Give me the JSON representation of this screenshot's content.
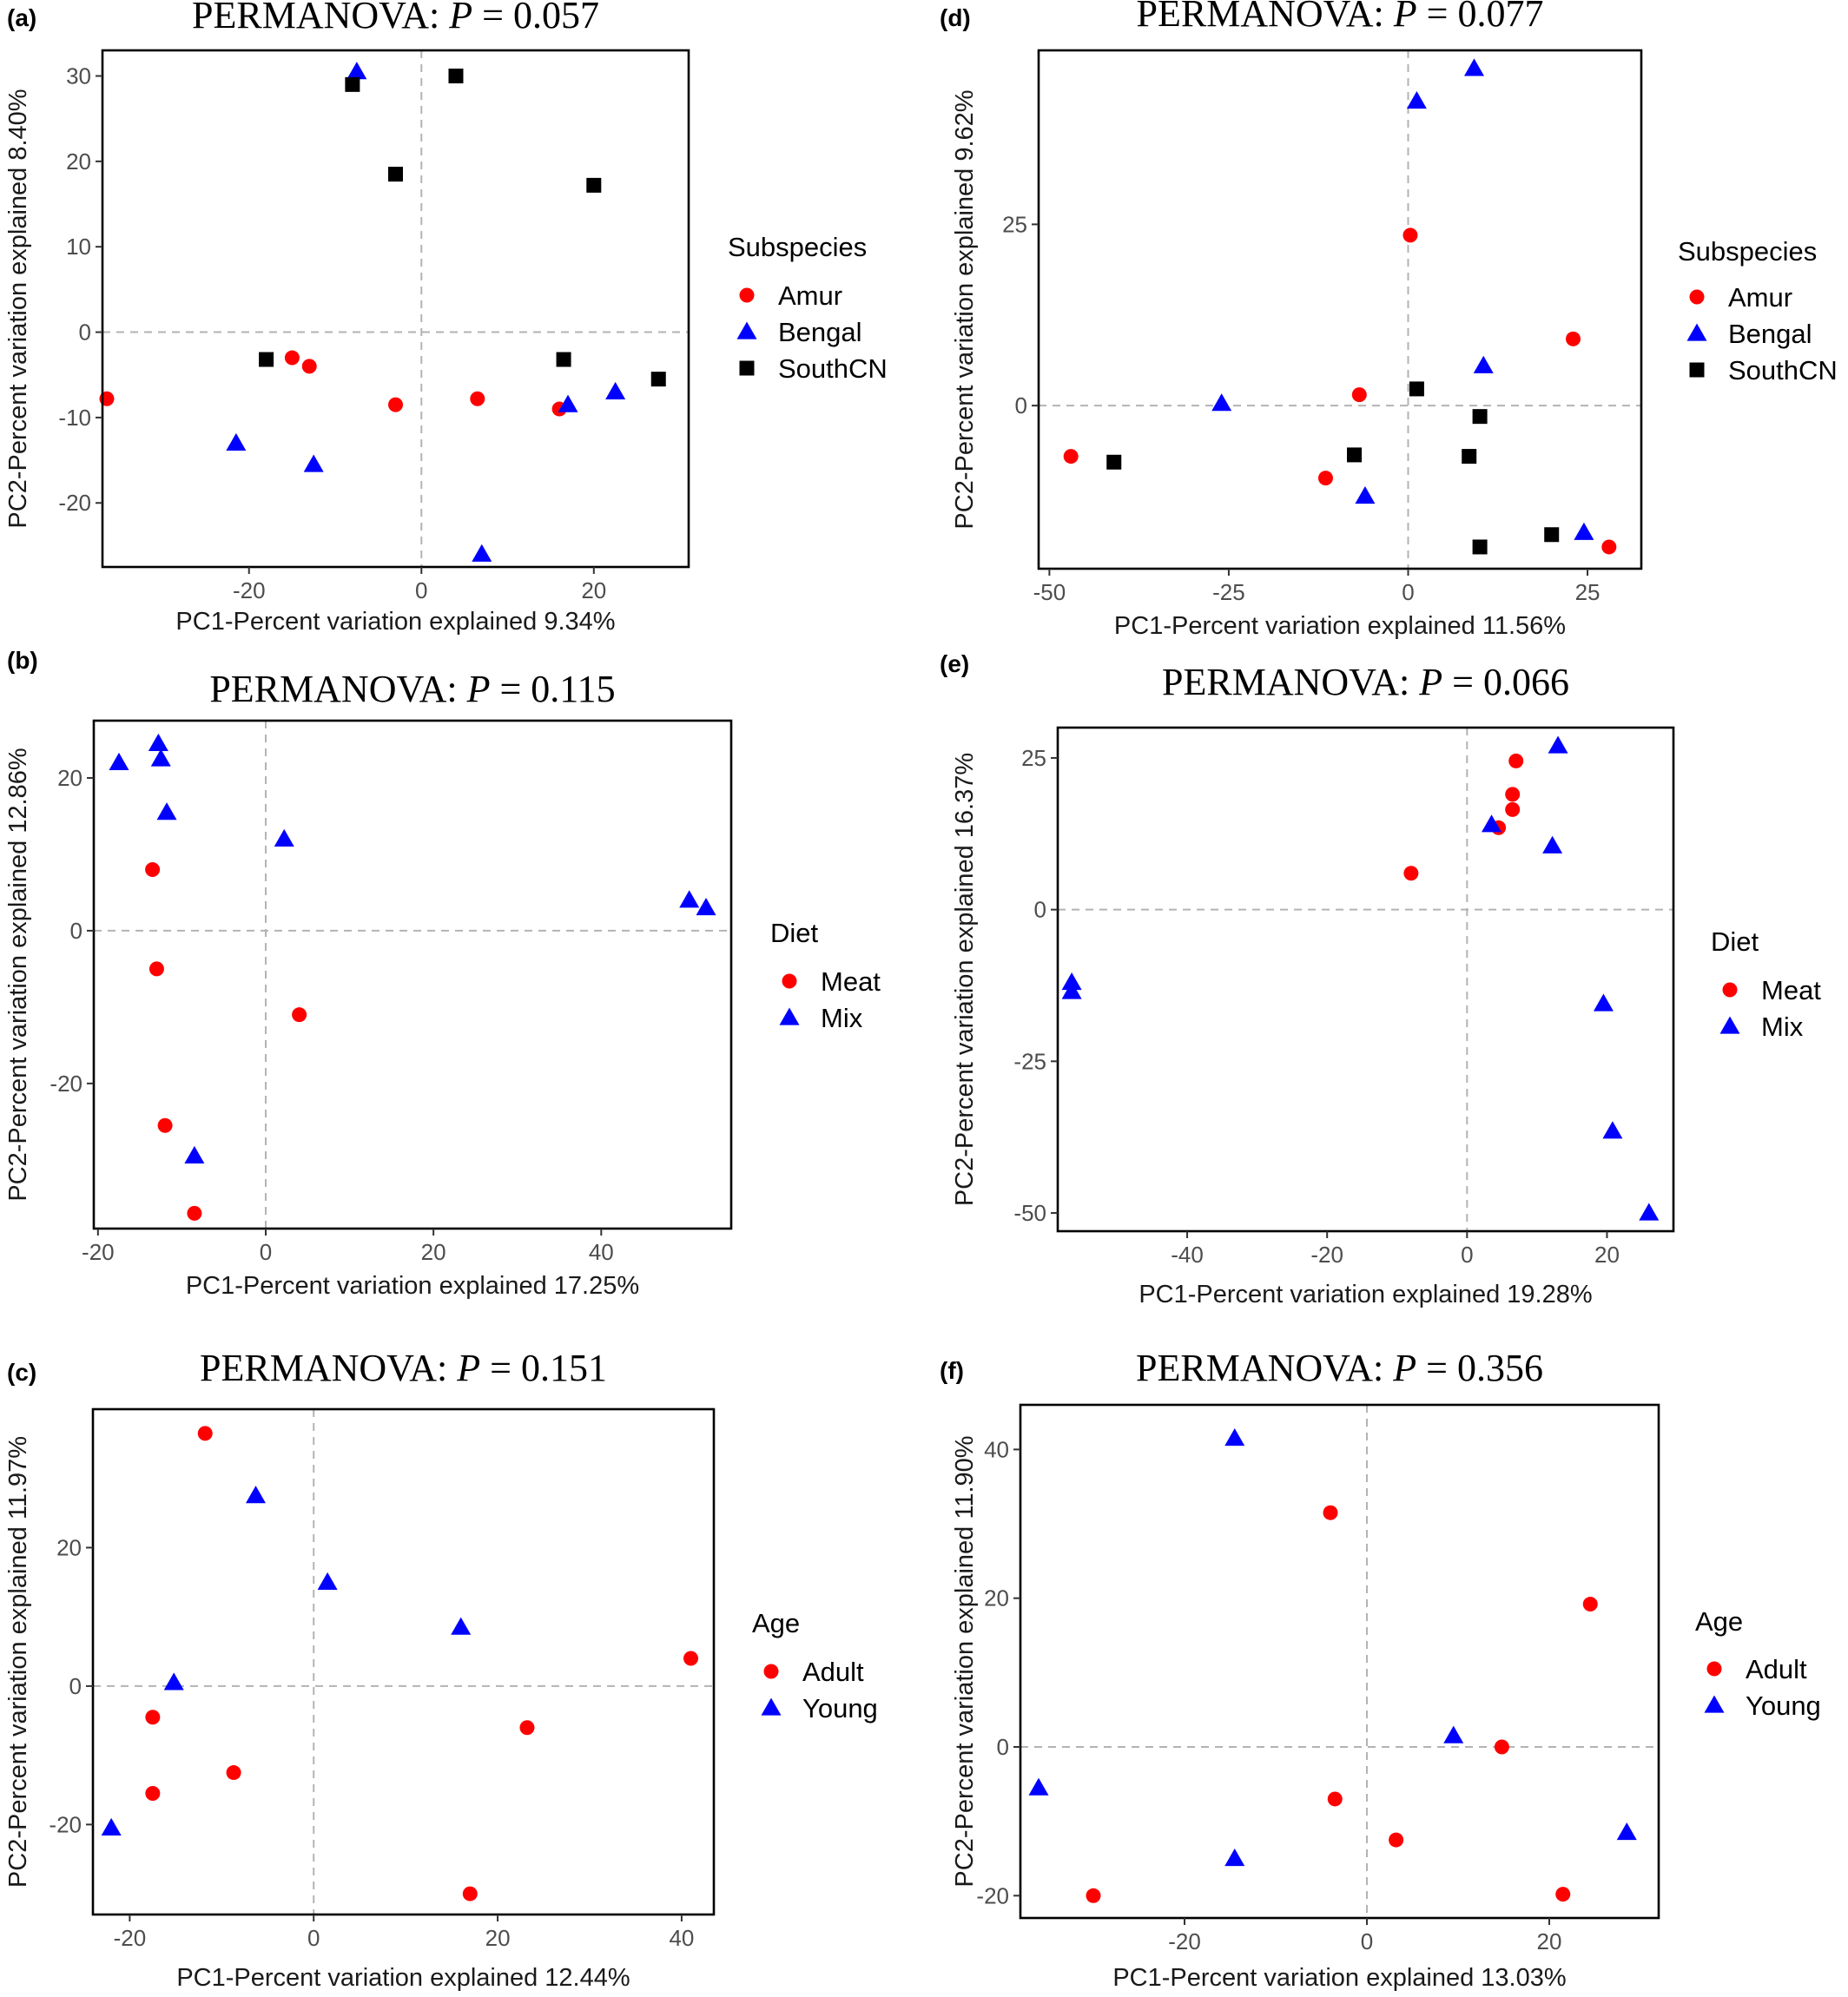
{
  "colors": {
    "Amur": "#ff0000",
    "Bengal": "#0000ff",
    "SouthCN": "#000000",
    "Meat": "#ff0000",
    "Mix": "#0000ff",
    "Adult": "#ff0000",
    "Young": "#0000ff"
  },
  "chart_data": [
    {
      "panel": "(a)",
      "type": "scatter",
      "title_prefix": "PERMANOVA: ",
      "title_p": "P",
      "title_suffix": " = 0.057",
      "xlabel": "PC1-Percent variation explained 9.34%",
      "ylabel": "PC2-Percent variation explained 8.40%",
      "xlim": [
        -37,
        31
      ],
      "ylim": [
        -27.5,
        33
      ],
      "xticks": [
        -20,
        0,
        20
      ],
      "yticks": [
        -20,
        -10,
        0,
        10,
        20,
        30
      ],
      "legend_title": "Subspecies",
      "series": [
        {
          "name": "Amur",
          "shape": "circle",
          "points": [
            [
              -36.5,
              -7.8
            ],
            [
              -15,
              -3
            ],
            [
              -13,
              -4
            ],
            [
              -3,
              -8.5
            ],
            [
              6.5,
              -7.8
            ],
            [
              16,
              -9
            ]
          ]
        },
        {
          "name": "Bengal",
          "shape": "triangle",
          "points": [
            [
              -7.5,
              30.5
            ],
            [
              -21.5,
              -13
            ],
            [
              -12.5,
              -15.5
            ],
            [
              17,
              -8.5
            ],
            [
              22.5,
              -7
            ],
            [
              7,
              -26
            ]
          ]
        },
        {
          "name": "SouthCN",
          "shape": "square",
          "points": [
            [
              -8,
              29
            ],
            [
              4,
              30
            ],
            [
              -3,
              18.5
            ],
            [
              20,
              17.2
            ],
            [
              -18,
              -3.2
            ],
            [
              16.5,
              -3.2
            ],
            [
              27.5,
              -5.5
            ]
          ]
        }
      ]
    },
    {
      "panel": "(b)",
      "type": "scatter",
      "title_prefix": "PERMANOVA: ",
      "title_p": "P",
      "title_suffix": " = 0.115",
      "xlabel": "PC1-Percent variation explained 17.25%",
      "ylabel": "PC2-Percent variation explained 12.86%",
      "xlim": [
        -20.5,
        55.5
      ],
      "ylim": [
        -39,
        27.5
      ],
      "xticks": [
        -20,
        0,
        20,
        40
      ],
      "yticks": [
        -20,
        0,
        20
      ],
      "legend_title": "Diet",
      "series": [
        {
          "name": "Meat",
          "shape": "circle",
          "points": [
            [
              -13.5,
              8
            ],
            [
              -13,
              -5
            ],
            [
              4,
              -11
            ],
            [
              -12,
              -25.5
            ],
            [
              -8.5,
              -37
            ]
          ]
        },
        {
          "name": "Mix",
          "shape": "triangle",
          "points": [
            [
              -17.5,
              22
            ],
            [
              -12.8,
              24.5
            ],
            [
              -12.5,
              22.5
            ],
            [
              -11.8,
              15.5
            ],
            [
              2.2,
              12
            ],
            [
              50.5,
              4
            ],
            [
              52.5,
              3
            ],
            [
              -8.5,
              -29.5
            ]
          ]
        }
      ]
    },
    {
      "panel": "(c)",
      "type": "scatter",
      "title_prefix": "PERMANOVA: ",
      "title_p": "P",
      "title_suffix": " = 0.151",
      "xlabel": "PC1-Percent variation explained 12.44%",
      "ylabel": "PC2-Percent variation explained 11.97%",
      "xlim": [
        -24,
        43.5
      ],
      "ylim": [
        -33,
        40
      ],
      "xticks": [
        -20,
        0,
        20,
        40
      ],
      "yticks": [
        -20,
        0,
        20
      ],
      "legend_title": "Age",
      "series": [
        {
          "name": "Adult",
          "shape": "circle",
          "points": [
            [
              -11.8,
              36.5
            ],
            [
              41,
              4
            ],
            [
              -17.5,
              -4.5
            ],
            [
              23.2,
              -6
            ],
            [
              -8.7,
              -12.5
            ],
            [
              -17.5,
              -15.5
            ],
            [
              17,
              -30
            ]
          ]
        },
        {
          "name": "Young",
          "shape": "triangle",
          "points": [
            [
              -6.3,
              27.5
            ],
            [
              1.5,
              15
            ],
            [
              16,
              8.5
            ],
            [
              -15.2,
              0.5
            ],
            [
              -22,
              -20.5
            ]
          ]
        }
      ]
    },
    {
      "panel": "(d)",
      "type": "scatter",
      "title_prefix": "PERMANOVA: ",
      "title_p": "P",
      "title_suffix": " = 0.077",
      "xlabel": "PC1-Percent variation explained 11.56%",
      "ylabel": "PC2-Percent variation explained 9.62%",
      "xlim": [
        -51.5,
        32.5
      ],
      "ylim": [
        -22.5,
        49
      ],
      "xticks": [
        -50,
        -25,
        0,
        25
      ],
      "yticks": [
        0,
        25
      ],
      "legend_title": "Subspecies",
      "series": [
        {
          "name": "Amur",
          "shape": "circle",
          "points": [
            [
              0.3,
              23.5
            ],
            [
              23,
              9.2
            ],
            [
              -6.8,
              1.5
            ],
            [
              -47,
              -7
            ],
            [
              -11.5,
              -10
            ],
            [
              28,
              -19.5
            ]
          ]
        },
        {
          "name": "Bengal",
          "shape": "triangle",
          "points": [
            [
              9.2,
              46.5
            ],
            [
              1.2,
              42
            ],
            [
              -26,
              0.3
            ],
            [
              10.5,
              5.5
            ],
            [
              -6,
              -12.5
            ],
            [
              24.5,
              -17.5
            ]
          ]
        },
        {
          "name": "SouthCN",
          "shape": "square",
          "points": [
            [
              1.2,
              2.3
            ],
            [
              10,
              -1.5
            ],
            [
              -7.5,
              -6.8
            ],
            [
              -41,
              -7.8
            ],
            [
              8.5,
              -7
            ],
            [
              20,
              -17.8
            ],
            [
              10,
              -19.5
            ]
          ]
        }
      ]
    },
    {
      "panel": "(e)",
      "type": "scatter",
      "title_prefix": "PERMANOVA: ",
      "title_p": "P",
      "title_suffix": " = 0.066",
      "xlabel": "PC1-Percent variation explained 19.28%",
      "ylabel": "PC2-Percent variation explained 16.37%",
      "xlim": [
        -58.5,
        29.5
      ],
      "ylim": [
        -53,
        30
      ],
      "xticks": [
        -40,
        -20,
        0,
        20
      ],
      "yticks": [
        -50,
        -25,
        0,
        25
      ],
      "legend_title": "Diet",
      "series": [
        {
          "name": "Meat",
          "shape": "circle",
          "points": [
            [
              7,
              24.5
            ],
            [
              6.5,
              19
            ],
            [
              6.5,
              16.5
            ],
            [
              4.5,
              13.5
            ],
            [
              -8,
              6
            ]
          ]
        },
        {
          "name": "Mix",
          "shape": "triangle",
          "points": [
            [
              13,
              27
            ],
            [
              3.5,
              14
            ],
            [
              12.2,
              10.5
            ],
            [
              -56.5,
              -12
            ],
            [
              -56.5,
              -13.5
            ],
            [
              19.5,
              -15.5
            ],
            [
              20.8,
              -36.5
            ],
            [
              26,
              -50
            ]
          ]
        }
      ]
    },
    {
      "panel": "(f)",
      "type": "scatter",
      "title_prefix": "PERMANOVA: ",
      "title_p": "P",
      "title_suffix": " = 0.356",
      "xlabel": "PC1-Percent variation explained 13.03%",
      "ylabel": "PC2-Percent variation explained 11.90%",
      "xlim": [
        -38,
        32
      ],
      "ylim": [
        -23,
        46
      ],
      "xticks": [
        -20,
        0,
        20
      ],
      "yticks": [
        -20,
        0,
        20,
        40
      ],
      "legend_title": "Age",
      "series": [
        {
          "name": "Adult",
          "shape": "circle",
          "points": [
            [
              -4,
              31.5
            ],
            [
              24.5,
              19.2
            ],
            [
              14.8,
              0
            ],
            [
              -3.5,
              -7
            ],
            [
              3.2,
              -12.5
            ],
            [
              -30,
              -20
            ],
            [
              21.5,
              -19.8
            ]
          ]
        },
        {
          "name": "Young",
          "shape": "triangle",
          "points": [
            [
              -14.5,
              41.5
            ],
            [
              9.5,
              1.5
            ],
            [
              -36,
              -5.5
            ],
            [
              28.5,
              -11.5
            ],
            [
              -14.5,
              -15
            ]
          ]
        }
      ]
    }
  ]
}
